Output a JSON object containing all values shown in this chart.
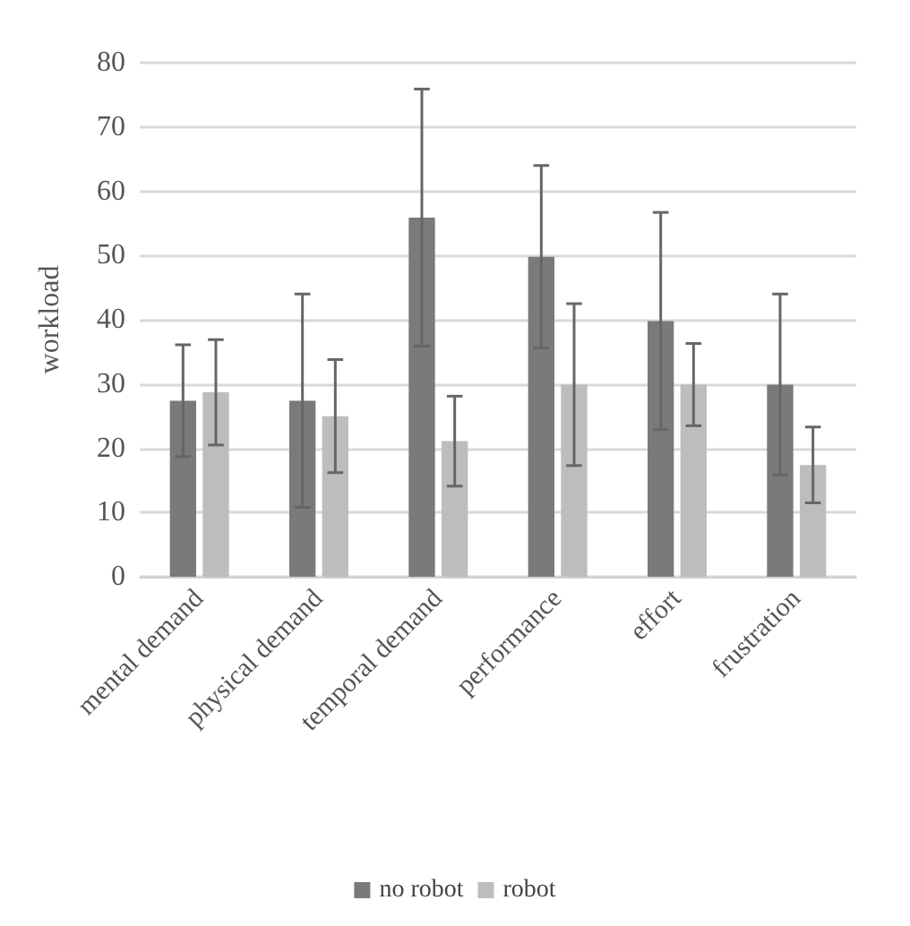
{
  "chart_data": {
    "type": "bar",
    "ylabel": "workload",
    "categories": [
      "mental demand",
      "physical demand",
      "temporal demand",
      "performance",
      "effort",
      "frustration"
    ],
    "series": [
      {
        "name": "no robot",
        "color": "#7a7a7a",
        "values": [
          27.4,
          27.4,
          55.9,
          49.8,
          39.8,
          29.9
        ],
        "errors": [
          8.7,
          16.6,
          20.0,
          14.2,
          16.9,
          14.1
        ]
      },
      {
        "name": "robot",
        "color": "#bdbdbd",
        "values": [
          28.7,
          25.0,
          21.1,
          29.9,
          29.9,
          17.4
        ],
        "errors": [
          8.2,
          8.8,
          7.0,
          12.6,
          6.4,
          5.9
        ]
      }
    ],
    "ylim": [
      0,
      80
    ],
    "yticks": [
      0,
      10,
      20,
      30,
      40,
      50,
      60,
      70,
      80
    ],
    "grid": "y",
    "legend": "bottom"
  }
}
